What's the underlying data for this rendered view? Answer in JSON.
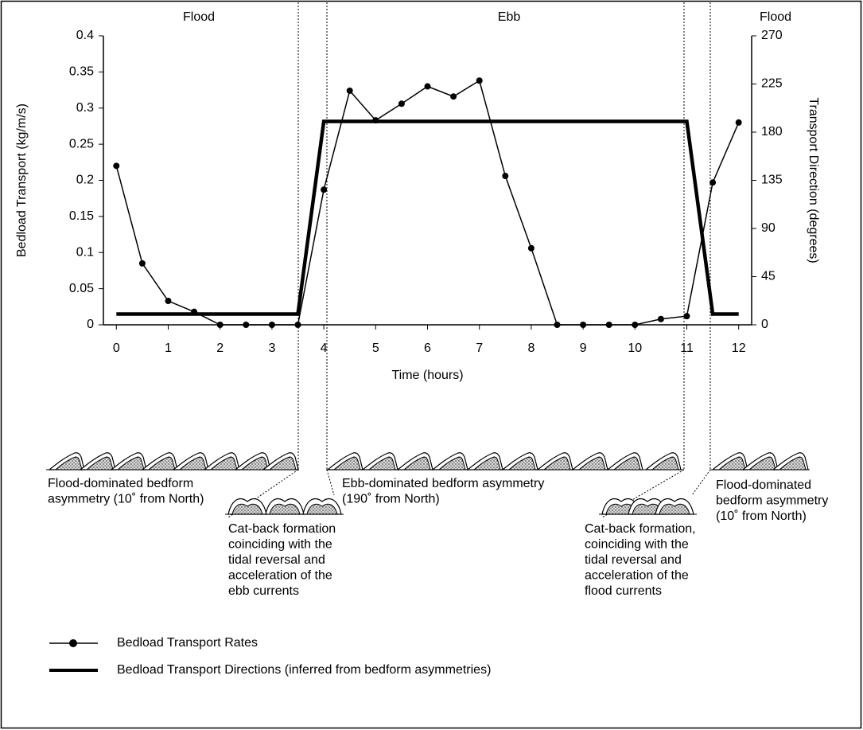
{
  "chart_data": {
    "type": "line",
    "phase_labels": [
      "Flood",
      "Ebb",
      "Flood"
    ],
    "xlabel": "Time (hours)",
    "ylabel": "Bedload Transport (kg/m/s)",
    "y2label": "Transport Direction (degrees)",
    "xlim": [
      -0.25,
      12.25
    ],
    "xticks": [
      0,
      1,
      2,
      3,
      4,
      5,
      6,
      7,
      8,
      9,
      10,
      11,
      12
    ],
    "ylim": [
      0,
      0.4
    ],
    "yticks": [
      0,
      0.05,
      0.1,
      0.15,
      0.2,
      0.25,
      0.3,
      0.35,
      0.4
    ],
    "y2lim": [
      0,
      270
    ],
    "y2ticks": [
      0,
      45,
      90,
      135,
      180,
      225,
      270
    ],
    "series": [
      {
        "name": "Bedload Transport Rates",
        "color": "#000000",
        "marker": "circle",
        "x": [
          0,
          0.5,
          1,
          1.5,
          2,
          2.5,
          3,
          3.5,
          4,
          4.5,
          5,
          5.5,
          6,
          6.5,
          7,
          7.5,
          8,
          8.5,
          9,
          9.5,
          10,
          10.5,
          11,
          11.5,
          12
        ],
        "values": [
          0.22,
          0.085,
          0.033,
          0.018,
          0,
          0,
          0,
          0,
          0.187,
          0.324,
          0.283,
          0.306,
          0.33,
          0.316,
          0.338,
          0.206,
          0.106,
          0,
          0,
          0,
          0,
          0.008,
          0.012,
          0.197,
          0.28
        ]
      },
      {
        "name": "Bedload Transport Directions (inferred from bedform asymmetries)",
        "color": "#000000",
        "axis": "y2",
        "x": [
          0,
          3.5,
          4,
          11,
          11.5,
          12
        ],
        "values": [
          10,
          10,
          190,
          190,
          10,
          10
        ]
      }
    ]
  },
  "bedform_annotations": [
    {
      "lines": [
        "Flood-dominated bedform",
        "asymmetry (10˚ from North)"
      ]
    },
    {
      "lines": [
        "Cat-back formation",
        "coinciding with the",
        "tidal reversal and",
        "acceleration of the",
        "ebb currents"
      ]
    },
    {
      "lines": [
        "Ebb-dominated bedform asymmetry",
        "(190˚ from North)"
      ]
    },
    {
      "lines": [
        "Cat-back formation,",
        "coinciding with the",
        "tidal reversal and",
        "acceleration of the",
        "flood currents"
      ]
    },
    {
      "lines": [
        "Flood-dominated",
        "bedform asymmetry",
        "(10˚ from North)"
      ]
    }
  ]
}
